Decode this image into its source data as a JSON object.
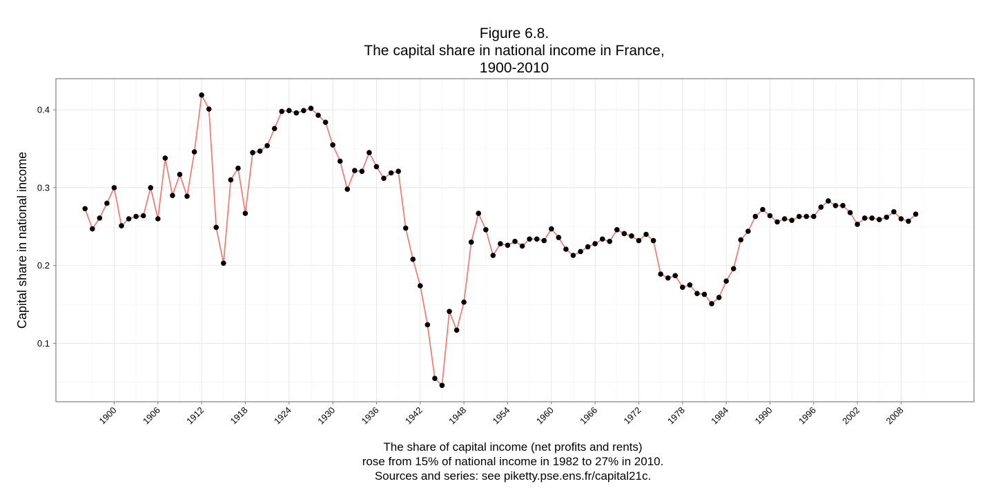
{
  "chart_data": {
    "type": "line",
    "title_lines": [
      "Figure 6.8.",
      "The capital share in national income in France,",
      "1900-2010"
    ],
    "xlabel_lines": [
      "The share of capital income (net profits and rents)",
      "rose from 15% of national income in 1982 to 27% in 2010.",
      "Sources and series: see piketty.pse.ens.fr/capital21c."
    ],
    "ylabel": "Capital share in national income",
    "xlim": [
      1892,
      2018
    ],
    "ylim": [
      0.025,
      0.44
    ],
    "x_ticks": [
      1900,
      1906,
      1912,
      1918,
      1924,
      1930,
      1936,
      1942,
      1948,
      1954,
      1960,
      1966,
      1972,
      1978,
      1984,
      1990,
      1996,
      2002,
      2008
    ],
    "y_ticks": [
      0.1,
      0.2,
      0.3,
      0.4
    ],
    "y_tick_labels": [
      "0.1",
      "0.2",
      "0.3",
      "0.4"
    ],
    "grid": true,
    "legend": "none",
    "line_color": "#F8766D",
    "point_color": "#000000",
    "x": [
      1896,
      1897,
      1898,
      1899,
      1900,
      1901,
      1902,
      1903,
      1904,
      1905,
      1906,
      1907,
      1908,
      1909,
      1910,
      1911,
      1912,
      1913,
      1914,
      1915,
      1916,
      1917,
      1918,
      1919,
      1920,
      1921,
      1922,
      1923,
      1924,
      1925,
      1926,
      1927,
      1928,
      1929,
      1930,
      1931,
      1932,
      1933,
      1934,
      1935,
      1936,
      1937,
      1938,
      1939,
      1940,
      1941,
      1942,
      1943,
      1944,
      1945,
      1946,
      1947,
      1948,
      1949,
      1950,
      1951,
      1952,
      1953,
      1954,
      1955,
      1956,
      1957,
      1958,
      1959,
      1960,
      1961,
      1962,
      1963,
      1964,
      1965,
      1966,
      1967,
      1968,
      1969,
      1970,
      1971,
      1972,
      1973,
      1974,
      1975,
      1976,
      1977,
      1978,
      1979,
      1980,
      1981,
      1982,
      1983,
      1984,
      1985,
      1986,
      1987,
      1988,
      1989,
      1990,
      1991,
      1992,
      1993,
      1994,
      1995,
      1996,
      1997,
      1998,
      1999,
      2000,
      2001,
      2002,
      2003,
      2004,
      2005,
      2006,
      2007,
      2008,
      2009,
      2010
    ],
    "y": [
      0.273,
      0.247,
      0.261,
      0.28,
      0.3,
      0.251,
      0.26,
      0.263,
      0.264,
      0.3,
      0.26,
      0.338,
      0.29,
      0.317,
      0.289,
      0.346,
      0.419,
      0.401,
      0.249,
      0.203,
      0.31,
      0.325,
      0.267,
      0.345,
      0.347,
      0.354,
      0.376,
      0.398,
      0.399,
      0.396,
      0.399,
      0.402,
      0.393,
      0.384,
      0.355,
      0.334,
      0.298,
      0.322,
      0.321,
      0.345,
      0.327,
      0.312,
      0.319,
      0.321,
      0.248,
      0.208,
      0.174,
      0.124,
      0.055,
      0.046,
      0.141,
      0.117,
      0.153,
      0.23,
      0.267,
      0.246,
      0.213,
      0.228,
      0.226,
      0.231,
      0.225,
      0.234,
      0.234,
      0.232,
      0.247,
      0.236,
      0.221,
      0.213,
      0.218,
      0.224,
      0.228,
      0.234,
      0.231,
      0.246,
      0.241,
      0.238,
      0.232,
      0.24,
      0.232,
      0.189,
      0.184,
      0.187,
      0.172,
      0.175,
      0.164,
      0.163,
      0.151,
      0.159,
      0.18,
      0.196,
      0.233,
      0.244,
      0.263,
      0.272,
      0.264,
      0.256,
      0.26,
      0.258,
      0.263,
      0.263,
      0.263,
      0.275,
      0.283,
      0.277,
      0.277,
      0.268,
      0.253,
      0.261,
      0.261,
      0.259,
      0.262,
      0.269,
      0.26,
      0.257,
      0.266
    ]
  }
}
